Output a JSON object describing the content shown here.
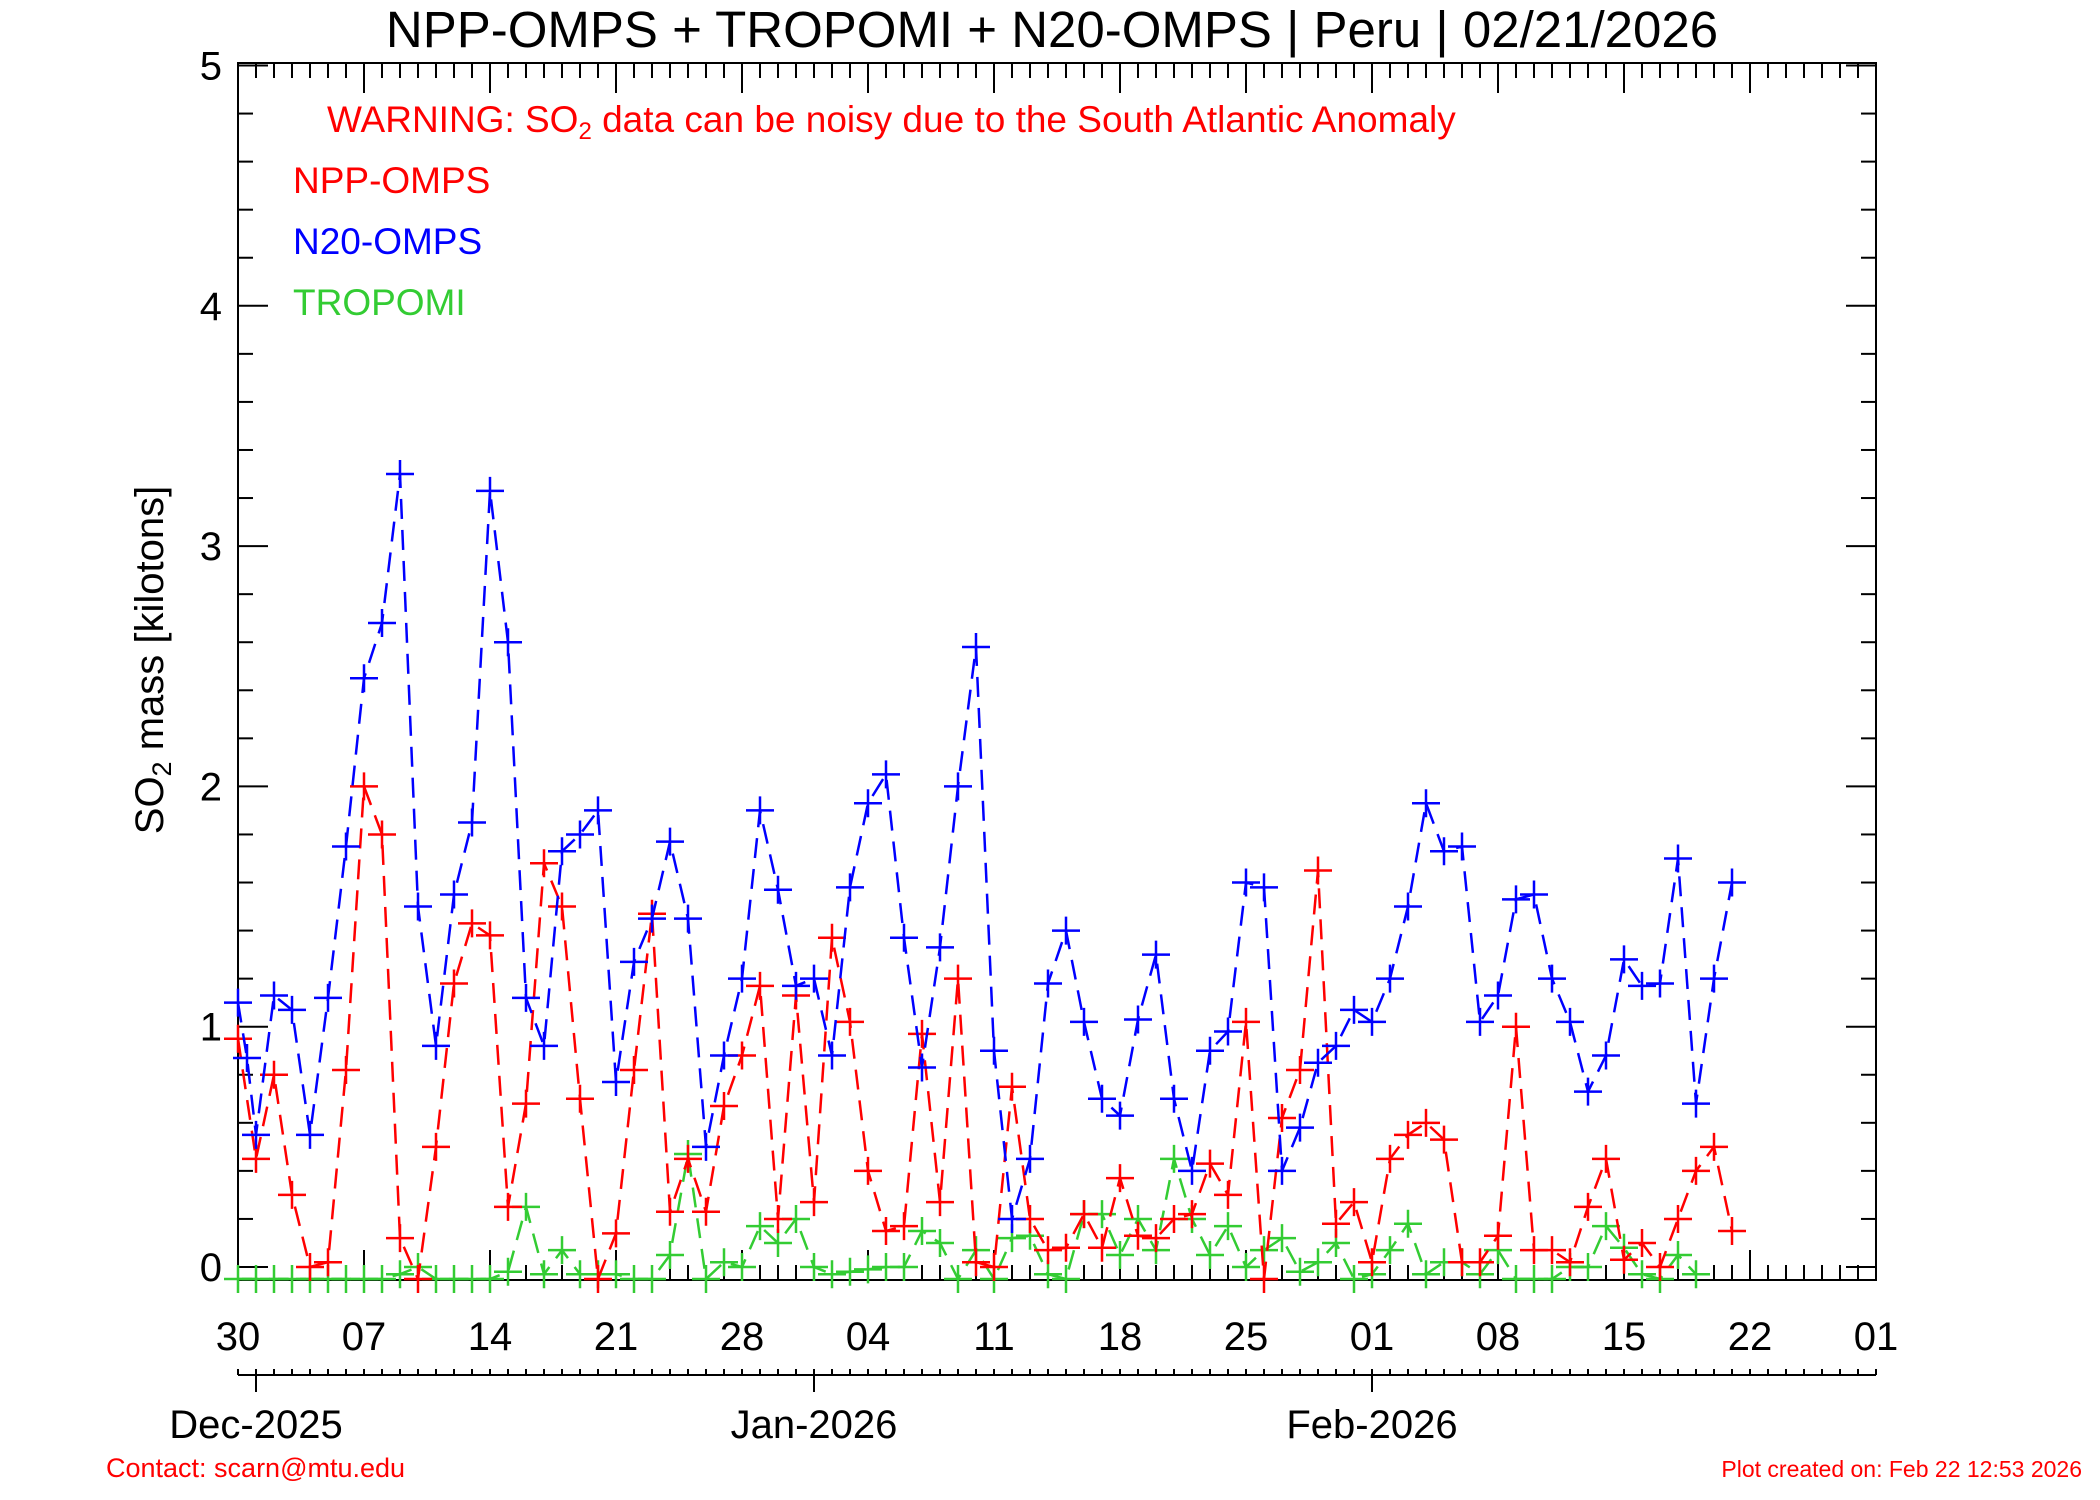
{
  "chart_data": {
    "type": "line",
    "title": "NPP-OMPS + TROPOMI + N20-OMPS | Peru | 02/21/2026",
    "warning": {
      "prefix": "WARNING: SO",
      "subscript": "2",
      "suffix": " data can be noisy due to the South Atlantic Anomaly",
      "color": "#ff0000"
    },
    "ylabel": {
      "prefix": "SO",
      "subscript": "2",
      "suffix": " mass [kilotons]"
    },
    "ylim": [
      0,
      5.1
    ],
    "yticks": [
      0,
      1,
      2,
      3,
      4,
      5
    ],
    "xlim": [
      "2025-11-30",
      "2026-03-01"
    ],
    "xticks": [
      {
        "date": "2025-11-30",
        "label": "30"
      },
      {
        "date": "2025-12-07",
        "label": "07"
      },
      {
        "date": "2025-12-14",
        "label": "14"
      },
      {
        "date": "2025-12-21",
        "label": "21"
      },
      {
        "date": "2025-12-28",
        "label": "28"
      },
      {
        "date": "2026-01-04",
        "label": "04"
      },
      {
        "date": "2026-01-11",
        "label": "11"
      },
      {
        "date": "2026-01-18",
        "label": "18"
      },
      {
        "date": "2026-01-25",
        "label": "25"
      },
      {
        "date": "2026-02-01",
        "label": "01"
      },
      {
        "date": "2026-02-08",
        "label": "08"
      },
      {
        "date": "2026-02-15",
        "label": "15"
      },
      {
        "date": "2026-02-22",
        "label": "22"
      },
      {
        "date": "2026-03-01",
        "label": "01"
      }
    ],
    "months": [
      {
        "date": "2025-12-01",
        "label": "Dec-2025"
      },
      {
        "date": "2026-01-01",
        "label": "Jan-2026"
      },
      {
        "date": "2026-02-01",
        "label": "Feb-2026"
      }
    ],
    "x_start": "2025-11-30",
    "legend_position": "top-left",
    "grid": false,
    "series": [
      {
        "name": "NPP-OMPS",
        "color": "#ff0000",
        "points": [
          [
            "2025-11-30",
            0.95
          ],
          [
            "2025-12-01",
            0.45
          ],
          [
            "2025-12-02",
            0.8
          ],
          [
            "2025-12-03",
            0.3
          ],
          [
            "2025-12-04",
            0.0
          ],
          [
            "2025-12-05",
            0.02
          ],
          [
            "2025-12-06",
            0.82
          ],
          [
            "2025-12-07",
            2.0
          ],
          [
            "2025-12-08",
            1.8
          ],
          [
            "2025-12-09",
            0.12
          ],
          [
            "2025-12-10",
            -0.05
          ],
          [
            "2025-12-11",
            0.5
          ],
          [
            "2025-12-12",
            1.18
          ],
          [
            "2025-12-13",
            1.43
          ],
          [
            "2025-12-14",
            1.38
          ],
          [
            "2025-12-15",
            0.25
          ],
          [
            "2025-12-16",
            0.68
          ],
          [
            "2025-12-17",
            1.68
          ],
          [
            "2025-12-18",
            1.5
          ],
          [
            "2025-12-19",
            0.7
          ],
          [
            "2025-12-20",
            -0.05
          ],
          [
            "2025-12-21",
            0.14
          ],
          [
            "2025-12-22",
            0.82
          ],
          [
            "2025-12-23",
            1.47
          ],
          [
            "2025-12-24",
            0.23
          ],
          [
            "2025-12-25",
            0.45
          ],
          [
            "2025-12-26",
            0.23
          ],
          [
            "2025-12-27",
            0.67
          ],
          [
            "2025-12-28",
            0.88
          ],
          [
            "2025-12-29",
            1.17
          ],
          [
            "2025-12-30",
            0.2
          ],
          [
            "2025-12-31",
            1.13
          ],
          [
            "2026-01-01",
            0.27
          ],
          [
            "2026-01-02",
            1.37
          ],
          [
            "2026-01-03",
            1.02
          ],
          [
            "2026-01-04",
            0.4
          ],
          [
            "2026-01-05",
            0.15
          ],
          [
            "2026-01-06",
            0.17
          ],
          [
            "2026-01-07",
            0.97
          ],
          [
            "2026-01-08",
            0.27
          ],
          [
            "2026-01-09",
            1.2
          ],
          [
            "2026-01-10",
            0.02
          ],
          [
            "2026-01-11",
            0.0
          ],
          [
            "2026-01-12",
            0.75
          ],
          [
            "2026-01-13",
            0.2
          ],
          [
            "2026-01-14",
            0.07
          ],
          [
            "2026-01-15",
            0.08
          ],
          [
            "2026-01-16",
            0.22
          ],
          [
            "2026-01-17",
            0.08
          ],
          [
            "2026-01-18",
            0.37
          ],
          [
            "2026-01-19",
            0.13
          ],
          [
            "2026-01-20",
            0.12
          ],
          [
            "2026-01-21",
            0.2
          ],
          [
            "2026-01-22",
            0.22
          ],
          [
            "2026-01-23",
            0.43
          ],
          [
            "2026-01-24",
            0.3
          ],
          [
            "2026-01-25",
            1.02
          ],
          [
            "2026-01-26",
            -0.05
          ],
          [
            "2026-01-27",
            0.62
          ],
          [
            "2026-01-28",
            0.82
          ],
          [
            "2026-01-29",
            1.65
          ],
          [
            "2026-01-30",
            0.18
          ],
          [
            "2026-01-31",
            0.27
          ],
          [
            "2026-02-01",
            0.02
          ],
          [
            "2026-02-02",
            0.45
          ],
          [
            "2026-02-03",
            0.55
          ],
          [
            "2026-02-04",
            0.6
          ],
          [
            "2026-02-05",
            0.53
          ],
          [
            "2026-02-06",
            0.02
          ],
          [
            "2026-02-07",
            0.02
          ],
          [
            "2026-02-08",
            0.13
          ],
          [
            "2026-02-09",
            1.0
          ],
          [
            "2026-02-10",
            0.07
          ],
          [
            "2026-02-11",
            0.07
          ],
          [
            "2026-02-12",
            0.02
          ],
          [
            "2026-02-13",
            0.25
          ],
          [
            "2026-02-14",
            0.45
          ],
          [
            "2026-02-15",
            0.03
          ],
          [
            "2026-02-16",
            0.1
          ],
          [
            "2026-02-17",
            0.0
          ],
          [
            "2026-02-18",
            0.2
          ],
          [
            "2026-02-19",
            0.4
          ],
          [
            "2026-02-20",
            0.5
          ],
          [
            "2026-02-21",
            0.15
          ]
        ]
      },
      {
        "name": "N20-OMPS",
        "color": "#0000ff",
        "points": [
          [
            "2025-11-30",
            1.1
          ],
          [
            "2025-11-30T12",
            0.87
          ],
          [
            "2025-12-01",
            0.55
          ],
          [
            "2025-12-02",
            1.13
          ],
          [
            "2025-12-03",
            1.07
          ],
          [
            "2025-12-04",
            0.55
          ],
          [
            "2025-12-05",
            1.12
          ],
          [
            "2025-12-06",
            1.75
          ],
          [
            "2025-12-07",
            2.45
          ],
          [
            "2025-12-08",
            2.68
          ],
          [
            "2025-12-09",
            3.3
          ],
          [
            "2025-12-10",
            1.5
          ],
          [
            "2025-12-11",
            0.92
          ],
          [
            "2025-12-12",
            1.55
          ],
          [
            "2025-12-13",
            1.85
          ],
          [
            "2025-12-14",
            3.23
          ],
          [
            "2025-12-15",
            2.6
          ],
          [
            "2025-12-16",
            1.12
          ],
          [
            "2025-12-17",
            0.92
          ],
          [
            "2025-12-18",
            1.73
          ],
          [
            "2025-12-19",
            1.8
          ],
          [
            "2025-12-20",
            1.9
          ],
          [
            "2025-12-21",
            0.77
          ],
          [
            "2025-12-22",
            1.27
          ],
          [
            "2025-12-23",
            1.45
          ],
          [
            "2025-12-24",
            1.77
          ],
          [
            "2025-12-25",
            1.45
          ],
          [
            "2025-12-26",
            0.5
          ],
          [
            "2025-12-27",
            0.88
          ],
          [
            "2025-12-28",
            1.2
          ],
          [
            "2025-12-29",
            1.9
          ],
          [
            "2025-12-30",
            1.57
          ],
          [
            "2025-12-31",
            1.17
          ],
          [
            "2026-01-01",
            1.2
          ],
          [
            "2026-01-02",
            0.88
          ],
          [
            "2026-01-03",
            1.58
          ],
          [
            "2026-01-04",
            1.93
          ],
          [
            "2026-01-05",
            2.05
          ],
          [
            "2026-01-06",
            1.37
          ],
          [
            "2026-01-07",
            0.83
          ],
          [
            "2026-01-08",
            1.33
          ],
          [
            "2026-01-09",
            2.0
          ],
          [
            "2026-01-10",
            2.58
          ],
          [
            "2026-01-11",
            0.9
          ],
          [
            "2026-01-12",
            0.2
          ],
          [
            "2026-01-13",
            0.45
          ],
          [
            "2026-01-14",
            1.18
          ],
          [
            "2026-01-15",
            1.4
          ],
          [
            "2026-01-16",
            1.02
          ],
          [
            "2026-01-17",
            0.7
          ],
          [
            "2026-01-18",
            0.63
          ],
          [
            "2026-01-19",
            1.03
          ],
          [
            "2026-01-20",
            1.3
          ],
          [
            "2026-01-21",
            0.7
          ],
          [
            "2026-01-22",
            0.4
          ],
          [
            "2026-01-23",
            0.9
          ],
          [
            "2026-01-24",
            0.98
          ],
          [
            "2026-01-25",
            1.6
          ],
          [
            "2026-01-26",
            1.58
          ],
          [
            "2026-01-27",
            0.4
          ],
          [
            "2026-01-28",
            0.58
          ],
          [
            "2026-01-29",
            0.85
          ],
          [
            "2026-01-30",
            0.92
          ],
          [
            "2026-01-31",
            1.07
          ],
          [
            "2026-02-01",
            1.02
          ],
          [
            "2026-02-02",
            1.2
          ],
          [
            "2026-02-03",
            1.5
          ],
          [
            "2026-02-04",
            1.93
          ],
          [
            "2026-02-05",
            1.73
          ],
          [
            "2026-02-06",
            1.75
          ],
          [
            "2026-02-07",
            1.02
          ],
          [
            "2026-02-08",
            1.13
          ],
          [
            "2026-02-09",
            1.53
          ],
          [
            "2026-02-10",
            1.55
          ],
          [
            "2026-02-11",
            1.2
          ],
          [
            "2026-02-12",
            1.02
          ],
          [
            "2026-02-13",
            0.73
          ],
          [
            "2026-02-14",
            0.88
          ],
          [
            "2026-02-15",
            1.28
          ],
          [
            "2026-02-16",
            1.17
          ],
          [
            "2026-02-17",
            1.18
          ],
          [
            "2026-02-18",
            1.7
          ],
          [
            "2026-02-19",
            0.68
          ],
          [
            "2026-02-20",
            1.2
          ],
          [
            "2026-02-21",
            1.6
          ]
        ]
      },
      {
        "name": "TROPOMI",
        "color": "#33cc33",
        "points": [
          [
            "2025-11-30",
            -0.05
          ],
          [
            "2025-12-01",
            -0.05
          ],
          [
            "2025-12-02",
            -0.05
          ],
          [
            "2025-12-03",
            -0.05
          ],
          [
            "2025-12-04",
            -0.05
          ],
          [
            "2025-12-05",
            -0.05
          ],
          [
            "2025-12-06",
            -0.05
          ],
          [
            "2025-12-07",
            -0.05
          ],
          [
            "2025-12-08",
            -0.05
          ],
          [
            "2025-12-09",
            -0.03
          ],
          [
            "2025-12-10",
            0.0
          ],
          [
            "2025-12-11",
            -0.05
          ],
          [
            "2025-12-12",
            -0.05
          ],
          [
            "2025-12-13",
            -0.05
          ],
          [
            "2025-12-14",
            -0.05
          ],
          [
            "2025-12-15",
            -0.02
          ],
          [
            "2025-12-16",
            0.25
          ],
          [
            "2025-12-17",
            -0.03
          ],
          [
            "2025-12-18",
            0.07
          ],
          [
            "2025-12-19",
            -0.03
          ],
          [
            "2025-12-20",
            -0.03
          ],
          [
            "2025-12-21",
            -0.03
          ],
          [
            "2025-12-22",
            -0.05
          ],
          [
            "2025-12-23",
            -0.05
          ],
          [
            "2025-12-24",
            0.05
          ],
          [
            "2025-12-25",
            0.47
          ],
          [
            "2025-12-26",
            -0.05
          ],
          [
            "2025-12-27",
            0.02
          ],
          [
            "2025-12-28",
            0.0
          ],
          [
            "2025-12-29",
            0.17
          ],
          [
            "2025-12-30",
            0.1
          ],
          [
            "2025-12-31",
            0.2
          ],
          [
            "2026-01-01",
            0.0
          ],
          [
            "2026-01-02",
            -0.03
          ],
          [
            "2026-01-03",
            -0.02
          ],
          [
            "2026-01-04",
            -0.01
          ],
          [
            "2026-01-05",
            0.0
          ],
          [
            "2026-01-06",
            0.0
          ],
          [
            "2026-01-07",
            0.15
          ],
          [
            "2026-01-08",
            0.1
          ],
          [
            "2026-01-09",
            -0.05
          ],
          [
            "2026-01-10",
            0.07
          ],
          [
            "2026-01-11",
            -0.05
          ],
          [
            "2026-01-12",
            0.12
          ],
          [
            "2026-01-13",
            0.13
          ],
          [
            "2026-01-14",
            -0.03
          ],
          [
            "2026-01-15",
            -0.05
          ],
          [
            "2026-01-16",
            0.22
          ],
          [
            "2026-01-17",
            0.22
          ],
          [
            "2026-01-18",
            0.05
          ],
          [
            "2026-01-19",
            0.2
          ],
          [
            "2026-01-20",
            0.07
          ],
          [
            "2026-01-21",
            0.45
          ],
          [
            "2026-01-22",
            0.2
          ],
          [
            "2026-01-23",
            0.05
          ],
          [
            "2026-01-24",
            0.17
          ],
          [
            "2026-01-25",
            0.0
          ],
          [
            "2026-01-26",
            0.07
          ],
          [
            "2026-01-27",
            0.12
          ],
          [
            "2026-01-28",
            -0.02
          ],
          [
            "2026-01-29",
            0.02
          ],
          [
            "2026-01-30",
            0.1
          ],
          [
            "2026-01-31",
            -0.05
          ],
          [
            "2026-02-01",
            -0.03
          ],
          [
            "2026-02-02",
            0.07
          ],
          [
            "2026-02-03",
            0.18
          ],
          [
            "2026-02-04",
            -0.03
          ],
          [
            "2026-02-05",
            0.02
          ],
          [
            "2026-02-06",
            0.02
          ],
          [
            "2026-02-07",
            -0.03
          ],
          [
            "2026-02-08",
            0.07
          ],
          [
            "2026-02-09",
            -0.05
          ],
          [
            "2026-02-10",
            -0.05
          ],
          [
            "2026-02-11",
            -0.05
          ],
          [
            "2026-02-12",
            0.0
          ],
          [
            "2026-02-13",
            0.0
          ],
          [
            "2026-02-14",
            0.17
          ],
          [
            "2026-02-15",
            0.08
          ],
          [
            "2026-02-16",
            -0.03
          ],
          [
            "2026-02-17",
            -0.05
          ],
          [
            "2026-02-18",
            0.05
          ],
          [
            "2026-02-19",
            -0.03
          ]
        ]
      }
    ]
  },
  "footer": {
    "contact": "Contact: scarn@mtu.edu",
    "created": "Plot created on: Feb 22 12:53 2026",
    "color": "#ff0000"
  }
}
